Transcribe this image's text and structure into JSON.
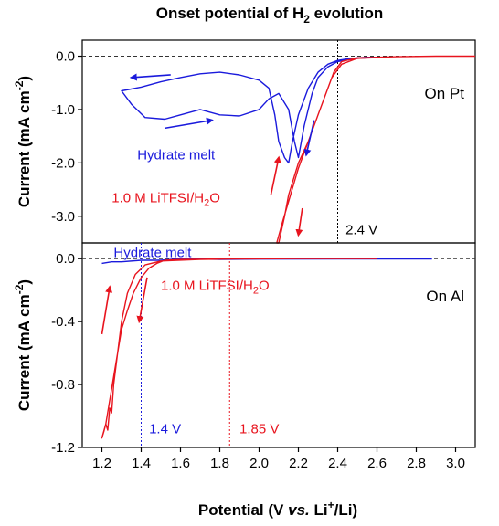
{
  "chart_data": {
    "type": "line",
    "title": "Onset potential of H₂ evolution",
    "title_parts": {
      "prefix": "Onset potential of H",
      "sub": "2",
      "suffix": " evolution"
    },
    "xlabel": "Potential (V vs. Li⁺/Li)",
    "xlabel_parts": {
      "p1": "Potential (V ",
      "italic": "vs.",
      "p2": " Li",
      "sup": "+",
      "p3": "/Li)"
    },
    "ylabel": "Current (mA cm⁻²)",
    "ylabel_parts": {
      "p1": "Current (mA cm",
      "sup": "-2",
      "p2": ")"
    },
    "xlim": [
      1.1,
      3.1
    ],
    "x_ticks": [
      "1.2",
      "1.4",
      "1.6",
      "1.8",
      "2.0",
      "2.2",
      "2.4",
      "2.6",
      "2.8",
      "3.0"
    ],
    "colors": {
      "hydrate_melt": "#1a1adc",
      "litfsi": "#e8141e",
      "axis": "#000000",
      "ref": "#333333"
    },
    "panels": [
      {
        "label": "On Pt",
        "ylim": [
          -3.5,
          0.3
        ],
        "y_ticks": [
          "0.0",
          "-1.0",
          "-2.0",
          "-3.0"
        ],
        "series": [
          {
            "name": "Hydrate melt",
            "color": "#1a1adc",
            "points": [
              [
                2.6,
                -0.02
              ],
              [
                2.55,
                -0.02
              ],
              [
                2.5,
                -0.03
              ],
              [
                2.45,
                -0.05
              ],
              [
                2.4,
                -0.08
              ],
              [
                2.35,
                -0.15
              ],
              [
                2.3,
                -0.3
              ],
              [
                2.25,
                -0.6
              ],
              [
                2.2,
                -1.1
              ],
              [
                2.17,
                -1.6
              ],
              [
                2.15,
                -2.0
              ],
              [
                2.13,
                -1.9
              ],
              [
                2.1,
                -1.6
              ],
              [
                2.08,
                -1.1
              ],
              [
                2.05,
                -0.6
              ],
              [
                2.0,
                -0.45
              ],
              [
                1.9,
                -0.35
              ],
              [
                1.8,
                -0.3
              ],
              [
                1.7,
                -0.33
              ],
              [
                1.6,
                -0.4
              ],
              [
                1.5,
                -0.48
              ],
              [
                1.4,
                -0.58
              ],
              [
                1.3,
                -0.65
              ],
              [
                1.35,
                -0.9
              ],
              [
                1.42,
                -1.15
              ],
              [
                1.52,
                -1.18
              ],
              [
                1.6,
                -1.1
              ],
              [
                1.7,
                -1.0
              ],
              [
                1.8,
                -1.1
              ],
              [
                1.9,
                -1.12
              ],
              [
                2.0,
                -1.0
              ],
              [
                2.05,
                -0.8
              ],
              [
                2.1,
                -0.7
              ],
              [
                2.15,
                -1.0
              ],
              [
                2.18,
                -1.6
              ],
              [
                2.2,
                -1.9
              ],
              [
                2.23,
                -1.3
              ],
              [
                2.27,
                -0.7
              ],
              [
                2.3,
                -0.4
              ],
              [
                2.35,
                -0.2
              ],
              [
                2.4,
                -0.1
              ],
              [
                2.5,
                -0.04
              ],
              [
                2.6,
                -0.02
              ]
            ]
          },
          {
            "name": "1.0 M LiTFSI/H₂O",
            "color": "#e8141e",
            "points": [
              [
                3.1,
                0.0
              ],
              [
                2.9,
                0.0
              ],
              [
                2.7,
                -0.01
              ],
              [
                2.5,
                -0.03
              ],
              [
                2.42,
                -0.1
              ],
              [
                2.38,
                -0.3
              ],
              [
                2.35,
                -0.6
              ],
              [
                2.3,
                -1.1
              ],
              [
                2.25,
                -1.6
              ],
              [
                2.2,
                -2.0
              ],
              [
                2.15,
                -2.6
              ],
              [
                2.13,
                -3.0
              ],
              [
                2.1,
                -3.5
              ],
              [
                2.09,
                -3.5
              ],
              [
                2.12,
                -3.1
              ],
              [
                2.16,
                -2.6
              ],
              [
                2.2,
                -2.1
              ],
              [
                2.26,
                -1.5
              ],
              [
                2.32,
                -0.9
              ],
              [
                2.37,
                -0.4
              ],
              [
                2.42,
                -0.15
              ],
              [
                2.5,
                -0.04
              ],
              [
                2.65,
                -0.02
              ]
            ]
          }
        ],
        "arrows": [
          {
            "color": "#1a1adc",
            "from": [
              1.55,
              -0.35
            ],
            "to": [
              1.35,
              -0.4
            ]
          },
          {
            "color": "#1a1adc",
            "from": [
              1.52,
              -1.35
            ],
            "to": [
              1.76,
              -1.2
            ]
          },
          {
            "color": "#1a1adc",
            "from": [
              2.28,
              -1.2
            ],
            "to": [
              2.24,
              -1.85
            ]
          },
          {
            "color": "#e8141e",
            "from": [
              2.06,
              -2.6
            ],
            "to": [
              2.1,
              -1.9
            ]
          },
          {
            "color": "#e8141e",
            "from": [
              2.22,
              -2.85
            ],
            "to": [
              2.2,
              -3.35
            ]
          }
        ],
        "annotations": [
          {
            "text": "Hydrate melt",
            "color": "#1a1adc",
            "x": 1.38,
            "y": -1.85
          },
          {
            "text_prefix": "1.0 M LiTFSI/H",
            "sub": "2",
            "text_suffix": "O",
            "color": "#e8141e",
            "x": 1.25,
            "y": -2.65
          },
          {
            "text": "2.4 V",
            "color": "#000000",
            "x": 2.44,
            "y": -3.25
          }
        ],
        "vlines": [
          {
            "x": 2.4,
            "color": "#000000"
          }
        ]
      },
      {
        "label": "On Al",
        "ylim": [
          -1.2,
          0.1
        ],
        "y_ticks": [
          "0.0",
          "-0.4",
          "-0.8",
          "-1.2"
        ],
        "series": [
          {
            "name": "Hydrate melt",
            "color": "#1a1adc",
            "points": [
              [
                1.2,
                -0.03
              ],
              [
                1.25,
                -0.02
              ],
              [
                1.3,
                -0.02
              ],
              [
                1.4,
                -0.01
              ],
              [
                1.5,
                -0.01
              ],
              [
                1.6,
                0.0
              ],
              [
                1.8,
                -0.005
              ],
              [
                2.0,
                -0.003
              ],
              [
                2.4,
                -0.002
              ],
              [
                2.8,
                -0.002
              ],
              [
                2.88,
                -0.002
              ]
            ]
          },
          {
            "name": "1.0 M LiTFSI/H₂O",
            "color": "#e8141e",
            "points": [
              [
                2.6,
                0.0
              ],
              [
                2.2,
                0.0
              ],
              [
                1.8,
                -0.002
              ],
              [
                1.6,
                -0.005
              ],
              [
                1.52,
                -0.01
              ],
              [
                1.48,
                -0.03
              ],
              [
                1.44,
                -0.06
              ],
              [
                1.4,
                -0.12
              ],
              [
                1.36,
                -0.22
              ],
              [
                1.33,
                -0.33
              ],
              [
                1.3,
                -0.45
              ],
              [
                1.28,
                -0.6
              ],
              [
                1.26,
                -0.75
              ],
              [
                1.24,
                -0.9
              ],
              [
                1.22,
                -1.05
              ],
              [
                1.2,
                -1.14
              ],
              [
                1.21,
                -1.1
              ],
              [
                1.22,
                -1.05
              ],
              [
                1.23,
                -1.09
              ],
              [
                1.24,
                -0.95
              ],
              [
                1.25,
                -0.98
              ],
              [
                1.26,
                -0.8
              ],
              [
                1.28,
                -0.6
              ],
              [
                1.3,
                -0.4
              ],
              [
                1.33,
                -0.22
              ],
              [
                1.37,
                -0.1
              ],
              [
                1.42,
                -0.04
              ],
              [
                1.5,
                -0.015
              ],
              [
                1.7,
                -0.005
              ],
              [
                2.0,
                0.0
              ],
              [
                2.4,
                0.0
              ]
            ]
          }
        ],
        "arrows": [
          {
            "color": "#e8141e",
            "from": [
              1.2,
              -0.48
            ],
            "to": [
              1.24,
              -0.18
            ]
          },
          {
            "color": "#e8141e",
            "from": [
              1.43,
              -0.12
            ],
            "to": [
              1.39,
              -0.4
            ]
          }
        ],
        "annotations": [
          {
            "text": "Hydrate melt",
            "color": "#1a1adc",
            "x": 1.26,
            "y": 0.04
          },
          {
            "text_prefix": "1.0 M LiTFSI/H",
            "sub": "2",
            "text_suffix": "O",
            "color": "#e8141e",
            "x": 1.5,
            "y": -0.17
          },
          {
            "text": "1.4 V",
            "color": "#1a1adc",
            "x": 1.44,
            "y": -1.08
          },
          {
            "text": "1.85 V",
            "color": "#e8141e",
            "x": 1.9,
            "y": -1.08
          }
        ],
        "vlines": [
          {
            "x": 1.4,
            "color": "#1a1adc"
          },
          {
            "x": 1.85,
            "color": "#e8141e"
          }
        ]
      }
    ]
  }
}
